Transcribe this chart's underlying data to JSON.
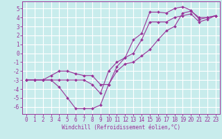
{
  "xlabel": "Windchill (Refroidissement éolien,°C)",
  "bg_color": "#c8ecec",
  "line_color": "#993399",
  "grid_color": "#ffffff",
  "xlim": [
    -0.5,
    23.5
  ],
  "ylim": [
    -6.8,
    5.8
  ],
  "xticks": [
    0,
    1,
    2,
    3,
    4,
    5,
    6,
    7,
    8,
    9,
    10,
    11,
    12,
    13,
    14,
    15,
    16,
    17,
    18,
    19,
    20,
    21,
    22,
    23
  ],
  "yticks": [
    -6,
    -5,
    -4,
    -3,
    -2,
    -1,
    0,
    1,
    2,
    3,
    4,
    5
  ],
  "line1_x": [
    0,
    1,
    2,
    3,
    4,
    5,
    6,
    7,
    8,
    9,
    10,
    11,
    12,
    13,
    14,
    15,
    16,
    17,
    18,
    19,
    20,
    21,
    22,
    23
  ],
  "line1_y": [
    -3,
    -3,
    -3,
    -3,
    -3.8,
    -5,
    -6.2,
    -6.2,
    -6.2,
    -5.8,
    -3.5,
    -2,
    -1.2,
    -1,
    -0.3,
    0.4,
    1.5,
    2.5,
    3,
    4.5,
    4.7,
    4,
    4,
    4.2
  ],
  "line2_x": [
    0,
    1,
    2,
    3,
    4,
    5,
    6,
    7,
    8,
    9,
    10,
    11,
    12,
    13,
    14,
    15,
    16,
    17,
    18,
    19,
    20,
    21,
    22,
    23
  ],
  "line2_y": [
    -3,
    -3,
    -3,
    -3,
    -3,
    -3,
    -3,
    -3,
    -3.5,
    -4.5,
    -2,
    -1,
    -0.5,
    1.5,
    2.2,
    4.6,
    4.6,
    4.5,
    5,
    5.2,
    4.8,
    3.8,
    4,
    4.2
  ],
  "line3_x": [
    0,
    1,
    2,
    3,
    4,
    5,
    6,
    7,
    8,
    9,
    10,
    11,
    12,
    13,
    14,
    15,
    16,
    17,
    18,
    19,
    20,
    21,
    22,
    23
  ],
  "line3_y": [
    -3,
    -3,
    -3,
    -2.5,
    -2,
    -2,
    -2.3,
    -2.5,
    -2.5,
    -3.5,
    -3.5,
    -1.5,
    -0.5,
    0,
    1.5,
    3.5,
    3.5,
    3.5,
    4,
    4.2,
    4.4,
    3.5,
    3.8,
    4.2
  ],
  "tick_fontsize": 5.5,
  "xlabel_fontsize": 5.5
}
